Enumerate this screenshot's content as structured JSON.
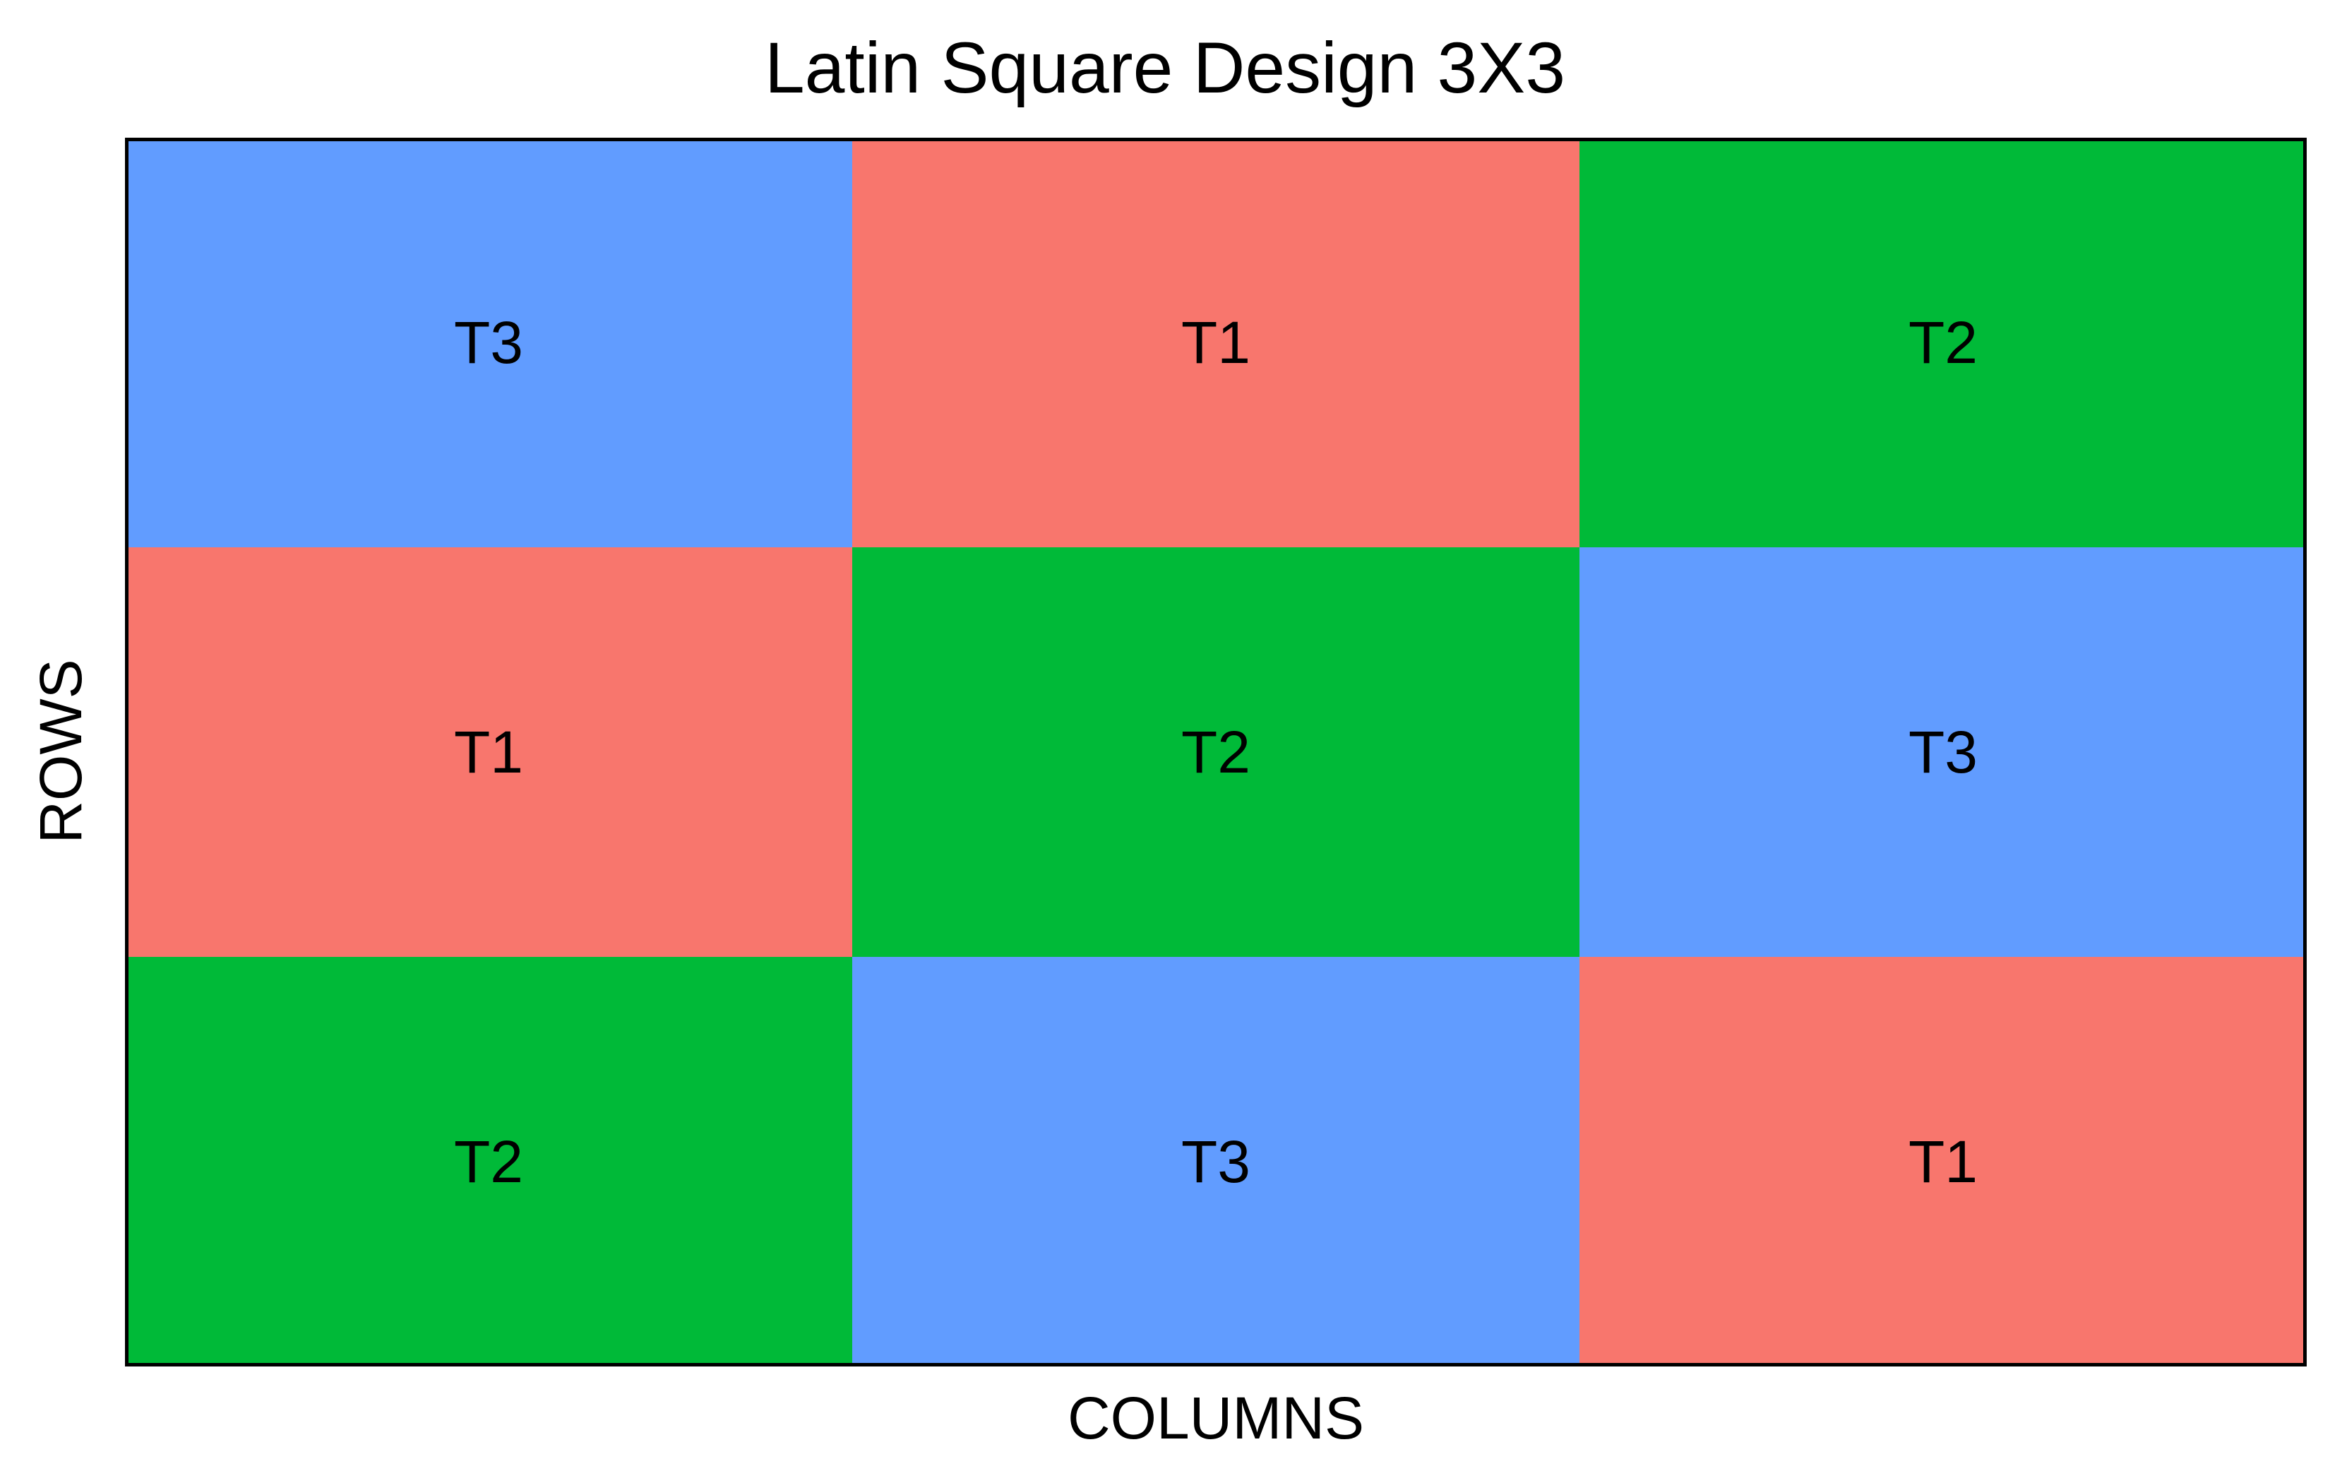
{
  "chart_data": {
    "type": "heatmap",
    "title": "Latin Square Design 3X3",
    "xlabel": "COLUMNS",
    "ylabel": "ROWS",
    "grid_lines": false,
    "legend": "none",
    "cells": [
      [
        "T3",
        "T1",
        "T2"
      ],
      [
        "T1",
        "T2",
        "T3"
      ],
      [
        "T2",
        "T3",
        "T1"
      ]
    ],
    "treatment_colors": {
      "T1": "#F8766D",
      "T2": "#00BA38",
      "T3": "#619CFF"
    }
  }
}
